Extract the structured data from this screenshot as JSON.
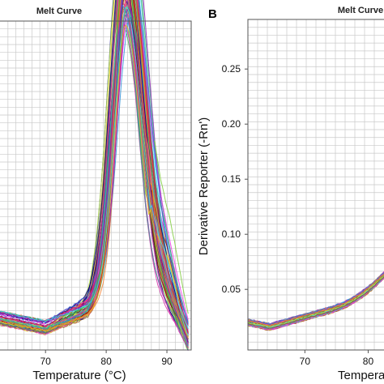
{
  "chart_data": [
    {
      "panel_letter": "",
      "type": "line",
      "title": "Melt Curve",
      "xlabel": "Temperature (°C)",
      "ylabel": "",
      "xlim": [
        62.5,
        94
      ],
      "ylim": [
        0,
        0.29
      ],
      "x_ticks": [
        70,
        80,
        90
      ],
      "y_ticks": [],
      "grid": true,
      "series_colors": [
        "#e6194b",
        "#3cb44b",
        "#4363d8",
        "#f58231",
        "#911eb4",
        "#42d4f4",
        "#f032e6",
        "#bfef45",
        "#469990",
        "#9a6324",
        "#800000",
        "#000075",
        "#7fcc3c",
        "#d62fa8",
        "#2f8fd6",
        "#e0c21b"
      ],
      "peak_x": 83.2,
      "peak_heights": [
        0.22,
        0.29
      ],
      "baseline_at_xmin": 0.028,
      "shoulder_at_x76": 0.046
    },
    {
      "panel_letter": "B",
      "type": "line",
      "title": "Melt Curve",
      "xlabel": "Temperature (°C)",
      "ylabel": "Derivative Reporter (-Rn')",
      "xlim": [
        61,
        82.5
      ],
      "ylim": [
        -0.005,
        0.295
      ],
      "x_ticks": [
        70,
        80
      ],
      "x_tick_labels": [
        "70",
        "80"
      ],
      "y_ticks": [
        0.05,
        0.1,
        0.15,
        0.2,
        0.25
      ],
      "y_tick_labels": [
        "0.05",
        "0.10",
        "0.15",
        "0.20",
        "0.25"
      ],
      "grid": true,
      "series_colors": [
        "#e6194b",
        "#3cb44b",
        "#4363d8",
        "#f58231",
        "#911eb4",
        "#42d4f4",
        "#f032e6",
        "#bfef45",
        "#469990",
        "#9a6324"
      ],
      "start_value": 0.02,
      "dip_value": 0.016,
      "end_value": 0.055
    }
  ]
}
